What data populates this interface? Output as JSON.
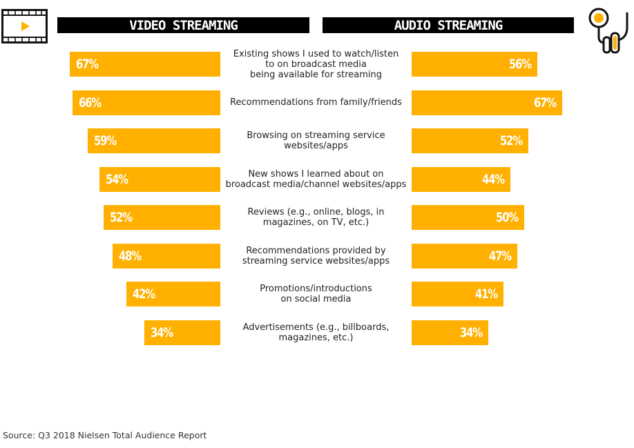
{
  "headers": {
    "left": "VIDEO STREAMING",
    "right": "AUDIO STREAMING"
  },
  "source": "Source: Q3 2018 Nielsen Total Audience Report",
  "colors": {
    "bar": "#FFB000",
    "header_bg": "#000000",
    "bar_text": "#FFFFFF"
  },
  "icons": {
    "left": "video-play-icon",
    "right": "headphones-icon"
  },
  "chart_data": {
    "type": "bar",
    "orientation": "horizontal-diverging",
    "categories": [
      "Existing shows I used to watch/listen to on broadcast media being available for streaming",
      "Recommendations from family/friends",
      "Browsing on streaming service websites/apps",
      "New shows I learned about on broadcast media/channel websites/apps",
      "Reviews (e.g., online, blogs, in magazines, on TV, etc.)",
      "Recommendations provided by streaming service websites/apps",
      "Promotions/introductions on social media",
      "Advertisements (e.g., billboards, magazines, etc.)"
    ],
    "category_lines": [
      [
        "Existing shows I used to watch/listen",
        "to on broadcast media",
        "being available for streaming"
      ],
      [
        "Recommendations from family/friends"
      ],
      [
        "Browsing on streaming service",
        "websites/apps"
      ],
      [
        "New shows I learned about on",
        "broadcast media/channel websites/apps"
      ],
      [
        "Reviews (e.g., online, blogs, in",
        "magazines, on TV, etc.)"
      ],
      [
        "Recommendations provided by",
        "streaming service websites/apps"
      ],
      [
        "Promotions/introductions",
        "on social media"
      ],
      [
        "Advertisements (e.g., billboards,",
        "magazines, etc.)"
      ]
    ],
    "series": [
      {
        "name": "VIDEO STREAMING",
        "values": [
          67,
          66,
          59,
          54,
          52,
          48,
          42,
          34
        ],
        "labels": [
          "67%",
          "66%",
          "59%",
          "54%",
          "52%",
          "48%",
          "42%",
          "34%"
        ]
      },
      {
        "name": "AUDIO STREAMING",
        "values": [
          56,
          67,
          52,
          44,
          50,
          47,
          41,
          34
        ],
        "labels": [
          "56%",
          "67%",
          "52%",
          "44%",
          "50%",
          "47%",
          "41%",
          "34%"
        ]
      }
    ],
    "xlim": [
      0,
      70
    ]
  }
}
